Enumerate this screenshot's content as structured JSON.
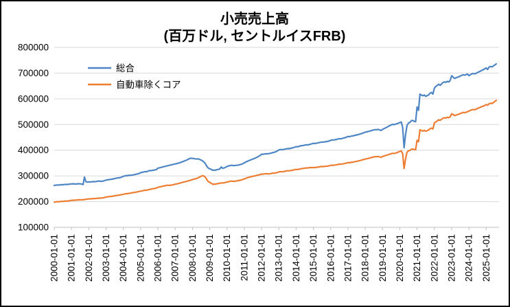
{
  "window": {
    "background": "#ffffff",
    "border_color": "#000000"
  },
  "chart_data": {
    "type": "line",
    "title_line1": "小売売上高",
    "title_line2": "(百万ドル, セントルイスFRB)",
    "grid": "horizontal",
    "legend_position": "top-left-inside",
    "ylim": [
      100000,
      800000
    ],
    "yticks": [
      100000,
      200000,
      300000,
      400000,
      500000,
      600000,
      700000,
      800000
    ],
    "ytick_labels": [
      "100000",
      "200000",
      "300000",
      "400000",
      "500000",
      "600000",
      "700000",
      "800000"
    ],
    "x_monthly_start": "2000-01",
    "x_monthly_end": "2025-08",
    "xtick_labels": [
      "2000-01-01",
      "2001-01-01",
      "2002-01-01",
      "2003-01-01",
      "2004-01-01",
      "2005-01-01",
      "2006-01-01",
      "2007-01-01",
      "2008-01-01",
      "2009-01-01",
      "2010-01-01",
      "2011-01-01",
      "2012-01-01",
      "2013-01-01",
      "2014-01-01",
      "2015-01-01",
      "2016-01-01",
      "2017-01-01",
      "2018-01-01",
      "2019-01-01",
      "2020-01-01",
      "2021-01-01",
      "2022-01-01",
      "2023-01-01",
      "2024-01-01",
      "2025-01-01"
    ],
    "colors": {
      "grid": "#d9d9d9",
      "axis": "#bfbfbf",
      "text": "#000000"
    },
    "series": [
      {
        "name": "総合",
        "color": "#4e86c5",
        "values": [
          263000,
          263800,
          264900,
          264300,
          265200,
          266000,
          265600,
          266400,
          267300,
          266800,
          267500,
          268200,
          268800,
          269400,
          268900,
          268300,
          269000,
          269600,
          269100,
          268600,
          266200,
          295500,
          277800,
          275900,
          276800,
          276200,
          277100,
          278000,
          277400,
          278300,
          279200,
          280100,
          279500,
          279000,
          280200,
          281600,
          283900,
          284600,
          285800,
          286400,
          287200,
          288300,
          289600,
          291300,
          292000,
          292600,
          293700,
          295800,
          298900,
          299600,
          301400,
          300800,
          302700,
          302200,
          303600,
          304100,
          305300,
          307000,
          307800,
          309500,
          312900,
          313800,
          315400,
          316800,
          316200,
          318400,
          320900,
          320100,
          321400,
          321900,
          323600,
          324800,
          330200,
          331500,
          333000,
          334200,
          335800,
          337100,
          338500,
          339800,
          341200,
          342600,
          344000,
          345300,
          346500,
          347800,
          349400,
          351000,
          353200,
          355000,
          357100,
          359300,
          361800,
          364500,
          367600,
          369000,
          368200,
          367400,
          366500,
          365800,
          366300,
          364200,
          361800,
          358300,
          353900,
          346800,
          337200,
          330400,
          327800,
          325600,
          322100,
          322900,
          322400,
          324100,
          325300,
          327000,
          334800,
          329600,
          331200,
          333400,
          336900,
          338200,
          340100,
          341300,
          340600,
          339800,
          340900,
          341700,
          342300,
          343800,
          345400,
          347600,
          350900,
          353800,
          356600,
          359100,
          361300,
          363400,
          365800,
          367900,
          370300,
          373000,
          376200,
          379400,
          384600,
          383900,
          385300,
          386100,
          385900,
          386800,
          388000,
          389400,
          390900,
          392200,
          394600,
          397300,
          400800,
          402900,
          401900,
          402600,
          403800,
          405100,
          406300,
          405800,
          407200,
          408500,
          409800,
          411600,
          413900,
          412800,
          415200,
          416500,
          417900,
          418600,
          419800,
          421100,
          420400,
          422000,
          423300,
          425100,
          426800,
          425900,
          427400,
          428200,
          429600,
          430800,
          431900,
          431300,
          432800,
          433600,
          434200,
          436000,
          438600,
          440200,
          439300,
          440800,
          442100,
          443600,
          444900,
          444200,
          445800,
          447200,
          448700,
          450900,
          453600,
          452800,
          454300,
          455700,
          456600,
          457900,
          459300,
          460800,
          462400,
          463900,
          465800,
          468100,
          469900,
          471300,
          472800,
          474200,
          476000,
          477400,
          478800,
          480200,
          479600,
          481300,
          478800,
          476600,
          481200,
          483600,
          486900,
          489400,
          492800,
          495300,
          498600,
          500400,
          499800,
          501300,
          503100,
          505200,
          507800,
          509600,
          489400,
          409300,
          459800,
          495600,
          505300,
          508100,
          514600,
          515900,
          512300,
          510800,
          568300,
          554900,
          618200,
          614600,
          611900,
          614800,
          609600,
          612300,
          614900,
          621800,
          624600,
          618300,
          641800,
          647600,
          651900,
          656800,
          652300,
          657900,
          663600,
          665800,
          663900,
          667800,
          665300,
          671900,
          689600,
          684800,
          678900,
          681600,
          683900,
          685800,
          688600,
          690900,
          693600,
          691800,
          693900,
          696600,
          689800,
          693600,
          696900,
          698600,
          696800,
          698900,
          702600,
          704800,
          707600,
          710900,
          712800,
          716600,
          719800,
          713900,
          723600,
          725800,
          723900,
          727800,
          731600,
          735800
        ]
      },
      {
        "name": "自動車除くコア",
        "color": "#ed7d31",
        "values": [
          198000,
          198900,
          199800,
          199400,
          200300,
          201100,
          200800,
          201600,
          202400,
          202000,
          202900,
          203800,
          204900,
          205600,
          205200,
          205900,
          206600,
          207200,
          206800,
          207400,
          206900,
          208300,
          209100,
          209800,
          210900,
          210400,
          211200,
          212000,
          211600,
          212300,
          213100,
          213900,
          213400,
          214200,
          215000,
          215900,
          217800,
          218600,
          219400,
          220100,
          220800,
          221600,
          222900,
          223800,
          224600,
          225300,
          226100,
          227400,
          228900,
          229800,
          231200,
          230800,
          232300,
          233100,
          234400,
          235200,
          236100,
          237400,
          238200,
          239600,
          240900,
          241800,
          243200,
          244600,
          244100,
          245800,
          247300,
          248100,
          249800,
          250400,
          251600,
          253100,
          255800,
          256900,
          258200,
          259400,
          260800,
          261600,
          262900,
          263800,
          263200,
          264100,
          264900,
          266200,
          267900,
          268800,
          270300,
          271600,
          273200,
          274800,
          276100,
          277400,
          278900,
          280600,
          282300,
          283800,
          285900,
          287200,
          288600,
          290400,
          292800,
          295600,
          298900,
          300800,
          299400,
          294600,
          285300,
          277800,
          274600,
          271800,
          267400,
          268200,
          267800,
          269300,
          270100,
          271600,
          272900,
          272300,
          273400,
          274800,
          276300,
          277100,
          278900,
          279800,
          279200,
          278800,
          279900,
          280800,
          281600,
          282900,
          284300,
          286100,
          288600,
          290400,
          292800,
          294600,
          295900,
          297300,
          298800,
          299600,
          301200,
          302400,
          303800,
          305200,
          307300,
          306800,
          307900,
          308800,
          308200,
          307800,
          308900,
          310100,
          311300,
          310800,
          311900,
          313200,
          315400,
          316800,
          315900,
          316600,
          317800,
          318900,
          320100,
          319600,
          320800,
          321900,
          322800,
          324100,
          325300,
          324600,
          326200,
          327400,
          328600,
          329300,
          330400,
          331200,
          330800,
          331900,
          332600,
          331800,
          332900,
          332300,
          333400,
          334100,
          335200,
          336100,
          336800,
          336200,
          337300,
          337900,
          338400,
          339600,
          340800,
          341900,
          341200,
          342300,
          343400,
          344600,
          345800,
          345200,
          346300,
          347400,
          348800,
          350200,
          351900,
          351200,
          352400,
          353600,
          354400,
          355600,
          356800,
          358100,
          359400,
          360800,
          362300,
          364100,
          365400,
          366800,
          368100,
          369400,
          371200,
          372400,
          373800,
          374900,
          374400,
          375800,
          373900,
          372300,
          375600,
          377400,
          379300,
          380800,
          382900,
          384300,
          386400,
          387900,
          387300,
          388800,
          390600,
          392800,
          395400,
          397600,
          386400,
          328900,
          365300,
          391800,
          397400,
          399200,
          403800,
          404400,
          402900,
          401800,
          438600,
          432800,
          479400,
          476800,
          474200,
          477600,
          473900,
          476200,
          478800,
          483400,
          486200,
          482900,
          505800,
          509600,
          514200,
          518400,
          515900,
          520300,
          524800,
          526400,
          524900,
          528300,
          526600,
          529900,
          541800,
          538900,
          534600,
          536800,
          538400,
          540200,
          542800,
          544600,
          547200,
          545800,
          547400,
          549600,
          552400,
          554800,
          557200,
          558600,
          557400,
          559200,
          562800,
          564600,
          567200,
          569800,
          571400,
          574200,
          577800,
          574900,
          580600,
          582800,
          581400,
          585200,
          589600,
          593800
        ]
      }
    ]
  }
}
